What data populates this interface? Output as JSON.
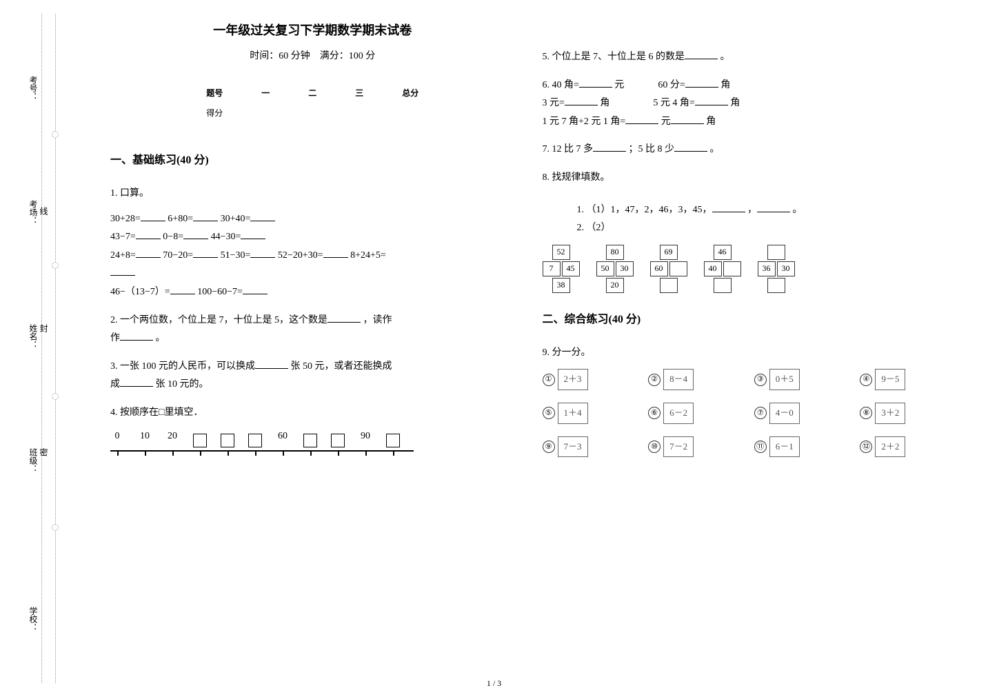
{
  "binding": {
    "kaohao": "考号：",
    "kaochang": "考场：",
    "xingming": "姓名：",
    "banji": "班级：",
    "xuexiao": "学校：",
    "mi": "密",
    "feng": "封",
    "xian": "线"
  },
  "title": "一年级过关复习下学期数学期末试卷",
  "subtitle": "时间：60 分钟　满分：100 分",
  "score_table": {
    "header": [
      "题号",
      "一",
      "二",
      "三",
      "总分"
    ],
    "row": "得分"
  },
  "section1": "一、基础练习(40 分)",
  "section2": "二、综合练习(40 分)",
  "p1": {
    "num": "1.",
    "label": "口算。",
    "exprs": [
      "30+28=",
      "6+80=",
      "30+40=",
      "43−7=",
      "0−8=",
      "44−30=",
      "24+8=",
      "70−20=",
      "51−30=",
      "52−20+30=",
      "8+24+5=",
      "46−（13−7）=",
      "100−60−7="
    ]
  },
  "p2": {
    "num": "2.",
    "text_a": "一个两位数，个位上是 7，十位上是 5，这个数是",
    "text_b": "，读作",
    "text_c": "。"
  },
  "p3": {
    "num": "3.",
    "text_a": "一张 100 元的人民币，可以换成",
    "text_b": "张 50 元，或者还能换成",
    "text_c": "张 10 元的。"
  },
  "p4": {
    "num": "4.",
    "text": "按顺序在□里填空．"
  },
  "numberline": {
    "labels": [
      "0",
      "10",
      "20",
      "",
      "",
      "",
      "60",
      "",
      "",
      "90",
      ""
    ],
    "box_at": [
      3,
      4,
      5,
      7,
      8,
      10
    ]
  },
  "p5": {
    "num": "5.",
    "text_a": "个位上是 7、十位上是 6 的数是",
    "text_b": "。"
  },
  "p6": {
    "num": "6.",
    "l1a": "40 角=",
    "l1b": "元",
    "l1c": "60 分=",
    "l1d": "角",
    "l2a": "3 元=",
    "l2b": "角",
    "l2c": "5 元 4 角=",
    "l2d": "角",
    "l3a": "1 元 7 角+2 元 1 角=",
    "l3b": "元",
    "l3c": "角"
  },
  "p7": {
    "num": "7.",
    "text_a": "12 比 7 多",
    "text_b": "；5 比 8 少",
    "text_c": "。"
  },
  "p8": {
    "num": "8.",
    "text": "找规律填数。"
  },
  "p8_sub1": {
    "num": "1.",
    "text_a": "（1）1，47，2，46，3，45，",
    "text_b": "，",
    "text_c": "。"
  },
  "p8_sub2": {
    "num": "2.",
    "text": "（2）"
  },
  "pyramids": [
    {
      "rows": [
        [
          "52"
        ],
        [
          "7",
          "45"
        ],
        [
          "38"
        ]
      ]
    },
    {
      "rows": [
        [
          "80"
        ],
        [
          "50",
          "30"
        ],
        [
          "20"
        ]
      ]
    },
    {
      "rows": [
        [
          "69"
        ],
        [
          "60",
          ""
        ],
        [
          ""
        ]
      ]
    },
    {
      "rows": [
        [
          "46"
        ],
        [
          "40",
          ""
        ],
        [
          ""
        ]
      ]
    },
    {
      "rows": [
        [
          ""
        ],
        [
          "36",
          "30"
        ],
        [
          ""
        ]
      ]
    }
  ],
  "p9": {
    "num": "9.",
    "text": "分一分。"
  },
  "exprs_grid": [
    "2＋3",
    "8－4",
    "0＋5",
    "9－5",
    "1＋4",
    "6－2",
    "4－0",
    "3＋2",
    "7－3",
    "7－2",
    "6－1",
    "2＋2"
  ],
  "circled_nums": [
    "①",
    "②",
    "③",
    "④",
    "⑤",
    "⑥",
    "⑦",
    "⑧",
    "⑨",
    "⑩",
    "⑪",
    "⑫"
  ],
  "footer": "1 / 3",
  "colors": {
    "text": "#000000",
    "border": "#000000",
    "light": "#666666",
    "dotted": "#999999",
    "bg": "#ffffff"
  }
}
